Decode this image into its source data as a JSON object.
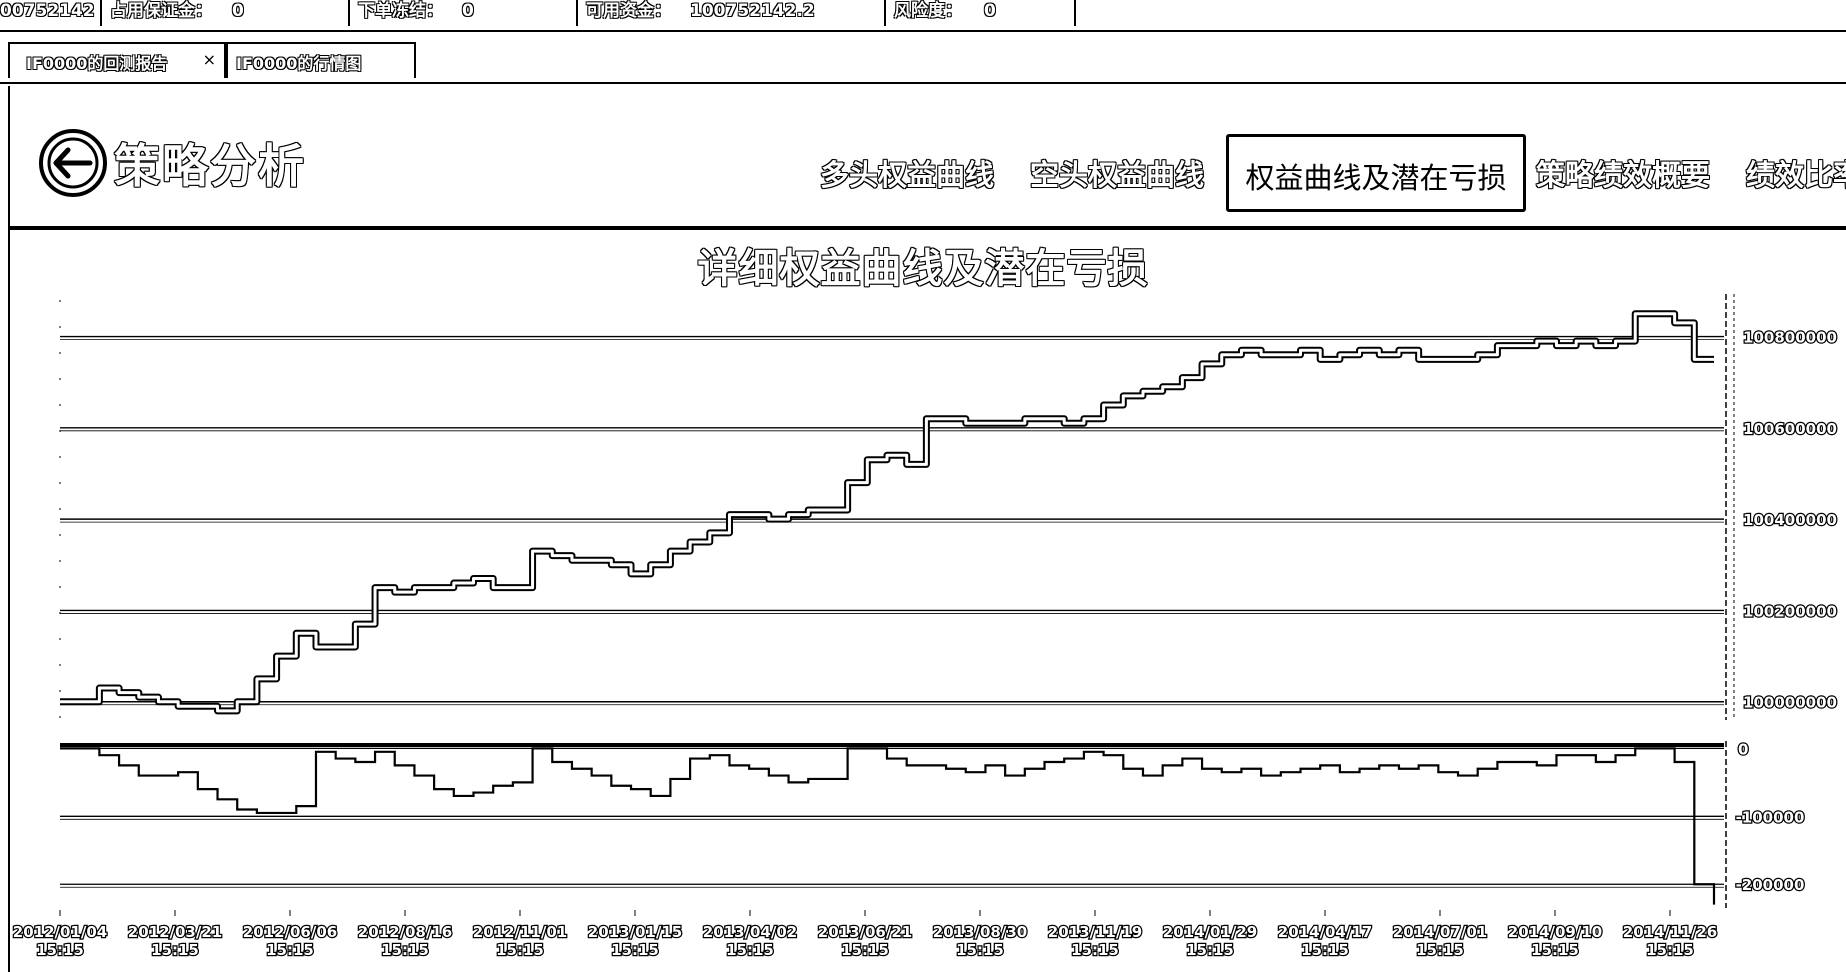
{
  "status_bar": {
    "balance": "00752142",
    "margin_label": "占用保证金：",
    "margin_value": "0",
    "frozen_label": "下单冻结：",
    "frozen_value": "0",
    "available_label": "可用资金：",
    "available_value": "100752142.2",
    "risk_label": "风险度：",
    "risk_value": "0"
  },
  "tabs": [
    {
      "label": "IF0000的回测报告",
      "close": "×"
    },
    {
      "label": "IF0000的行情图"
    }
  ],
  "header": {
    "title": "策略分析",
    "nav": [
      {
        "label": "多头权益曲线"
      },
      {
        "label": "空头权益曲线"
      },
      {
        "label": "权益曲线及潜在亏损",
        "active": true
      },
      {
        "label": "策略绩效概要"
      },
      {
        "label": "绩效比率"
      }
    ]
  },
  "colors": {
    "line": "#000000",
    "background": "#ffffff",
    "grid": "#000000"
  },
  "chart_data": [
    {
      "type": "line",
      "title": "详细权益曲线及潜在亏损",
      "series": [
        {
          "values": [
            100000000,
            100000000,
            100030000,
            100020000,
            100010000,
            100000000,
            99990000,
            99990000,
            99980000,
            100000000,
            100050000,
            100100000,
            100150000,
            100120000,
            100120000,
            100170000,
            100250000,
            100240000,
            100250000,
            100250000,
            100260000,
            100270000,
            100250000,
            100250000,
            100330000,
            100320000,
            100310000,
            100310000,
            100300000,
            100280000,
            100300000,
            100330000,
            100350000,
            100370000,
            100410000,
            100410000,
            100400000,
            100410000,
            100420000,
            100420000,
            100480000,
            100530000,
            100540000,
            100520000,
            100620000,
            100620000,
            100610000,
            100610000,
            100610000,
            100620000,
            100620000,
            100610000,
            100620000,
            100650000,
            100670000,
            100680000,
            100690000,
            100710000,
            100740000,
            100760000,
            100770000,
            100760000,
            100760000,
            100770000,
            100750000,
            100760000,
            100770000,
            100760000,
            100770000,
            100750000,
            100750000,
            100750000,
            100760000,
            100780000,
            100780000,
            100790000,
            100780000,
            100790000,
            100780000,
            100790000,
            100850000,
            100850000,
            100830000,
            100750000,
            100750000
          ]
        }
      ],
      "x_tick_labels": [
        [
          "2012/01/04",
          "15:15"
        ],
        [
          "2012/03/21",
          "15:15"
        ],
        [
          "2012/06/06",
          "15:15"
        ],
        [
          "2012/08/16",
          "15:15"
        ],
        [
          "2012/11/01",
          "15:15"
        ],
        [
          "2013/01/15",
          "15:15"
        ],
        [
          "2013/04/02",
          "15:15"
        ],
        [
          "2013/06/21",
          "15:15"
        ],
        [
          "2013/08/30",
          "15:15"
        ],
        [
          "2013/11/19",
          "15:15"
        ],
        [
          "2014/01/29",
          "15:15"
        ],
        [
          "2014/04/17",
          "15:15"
        ],
        [
          "2014/07/01",
          "15:15"
        ],
        [
          "2014/09/10",
          "15:15"
        ],
        [
          "2014/11/26",
          "15:15"
        ]
      ],
      "y_ticks": [
        "100000000",
        "100200000",
        "100400000",
        "100600000",
        "100800000"
      ],
      "ylim": [
        99960000,
        100880000
      ],
      "grid": true,
      "axis_position": "right"
    },
    {
      "type": "area",
      "series": [
        {
          "values": [
            0,
            0,
            -10000,
            -25000,
            -40000,
            -40000,
            -35000,
            -60000,
            -75000,
            -90000,
            -95000,
            -95000,
            -85000,
            -5000,
            -15000,
            -20000,
            -5000,
            -25000,
            -40000,
            -60000,
            -70000,
            -65000,
            -55000,
            -50000,
            0,
            -20000,
            -30000,
            -40000,
            -55000,
            -60000,
            -70000,
            -45000,
            -15000,
            -10000,
            -25000,
            -30000,
            -40000,
            -50000,
            -45000,
            -45000,
            0,
            0,
            -15000,
            -25000,
            -25000,
            -30000,
            -35000,
            -25000,
            -40000,
            -30000,
            -20000,
            -15000,
            -5000,
            -10000,
            -30000,
            -40000,
            -25000,
            -15000,
            -30000,
            -35000,
            -30000,
            -40000,
            -35000,
            -30000,
            -25000,
            -35000,
            -30000,
            -25000,
            -30000,
            -25000,
            -35000,
            -40000,
            -30000,
            -20000,
            -20000,
            -25000,
            -10000,
            -10000,
            -20000,
            -10000,
            0,
            0,
            -20000,
            -200000,
            -230000
          ]
        }
      ],
      "y_ticks": [
        "0",
        "-100000",
        "-200000"
      ],
      "ylim": [
        -235000,
        5000
      ],
      "grid": true,
      "axis_position": "right"
    }
  ]
}
